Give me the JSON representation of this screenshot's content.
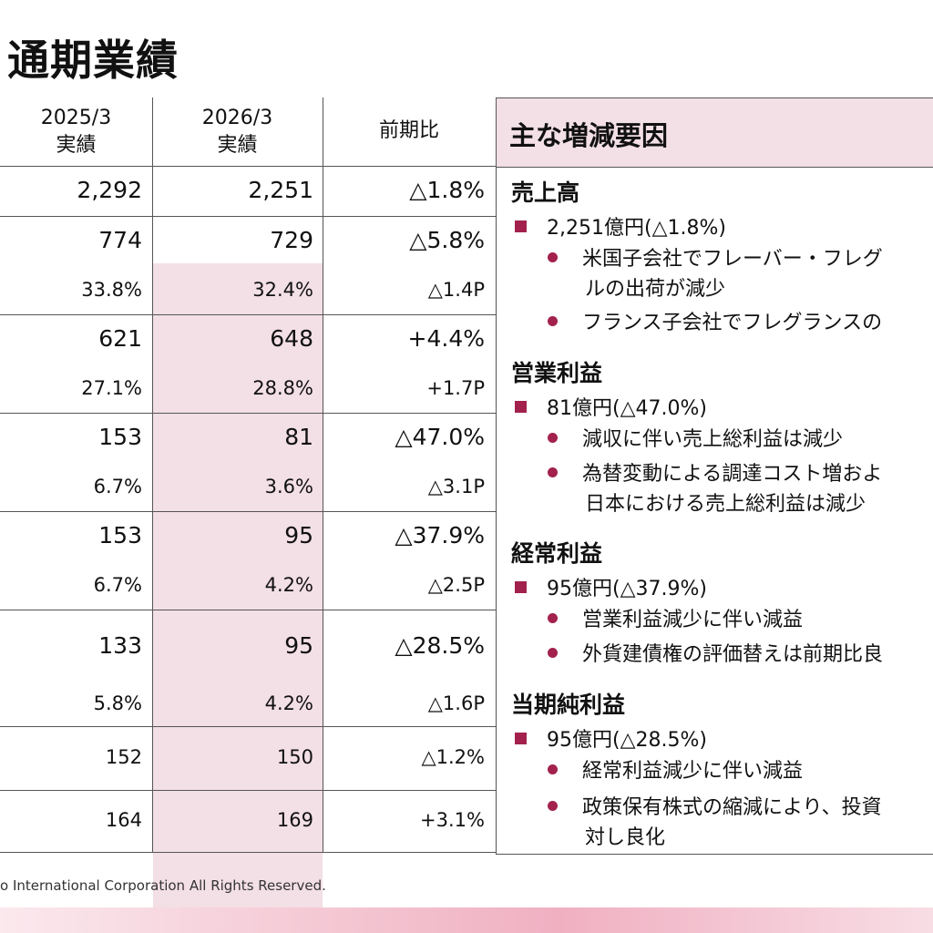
{
  "title": "通期業績",
  "table": {
    "headers": [
      {
        "line1": "2025/3",
        "line2": "実績"
      },
      {
        "line1": "2026/3",
        "line2": "実績"
      },
      {
        "line1": "前期比",
        "line2": ""
      }
    ],
    "rows": [
      {
        "prev": "2,292",
        "curr": "2,251",
        "diff": "△1.8%"
      },
      {
        "prev": "774",
        "curr": "729",
        "diff": "△5.8%"
      },
      {
        "prev": "33.8%",
        "curr": "32.4%",
        "diff": "△1.4P"
      },
      {
        "prev": "621",
        "curr": "648",
        "diff": "+4.4%"
      },
      {
        "prev": "27.1%",
        "curr": "28.8%",
        "diff": "+1.7P"
      },
      {
        "prev": "153",
        "curr": "81",
        "diff": "△47.0%"
      },
      {
        "prev": "6.7%",
        "curr": "3.6%",
        "diff": "△3.1P"
      },
      {
        "prev": "153",
        "curr": "95",
        "diff": "△37.9%"
      },
      {
        "prev": "6.7%",
        "curr": "4.2%",
        "diff": "△2.5P"
      },
      {
        "prev": "133",
        "curr": "95",
        "diff": "△28.5%"
      },
      {
        "prev": "5.8%",
        "curr": "4.2%",
        "diff": "△1.6P"
      },
      {
        "prev": "152",
        "curr": "150",
        "diff": "△1.2%"
      },
      {
        "prev": "164",
        "curr": "169",
        "diff": "+3.1%"
      }
    ]
  },
  "factors": {
    "heading": "主な増減要因",
    "sections": [
      {
        "title": "売上高",
        "summary": "2,251億円(△1.8%)",
        "points": [
          {
            "line1": "米国子会社でフレーバー・フレグ",
            "line2": "ルの出荷が減少"
          },
          {
            "line1": "フランス子会社でフレグランスの",
            "line2": ""
          }
        ]
      },
      {
        "title": "営業利益",
        "summary": "81億円(△47.0%)",
        "points": [
          {
            "line1": "減収に伴い売上総利益は減少",
            "line2": ""
          },
          {
            "line1": "為替変動による調達コスト増およ",
            "line2": "日本における売上総利益は減少"
          }
        ]
      },
      {
        "title": "経常利益",
        "summary": "95億円(△37.9%)",
        "points": [
          {
            "line1": "営業利益減少に伴い減益",
            "line2": ""
          },
          {
            "line1": "外貨建債権の評価替えは前期比良",
            "line2": ""
          }
        ]
      },
      {
        "title": "当期純利益",
        "summary": "95億円(△28.5%)",
        "points": [
          {
            "line1": "経常利益減少に伴い減益",
            "line2": ""
          },
          {
            "line1": "政策保有株式の縮減により、投資",
            "line2": "対し良化"
          }
        ]
      }
    ]
  },
  "footer": "o International Corporation All Rights Reserved."
}
